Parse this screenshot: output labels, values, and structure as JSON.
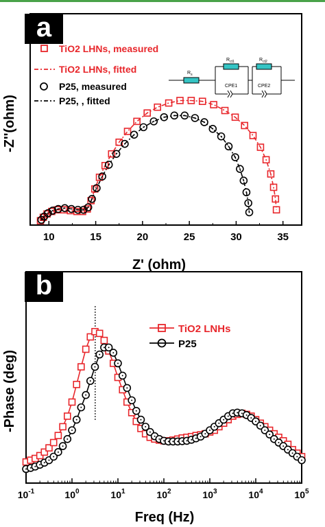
{
  "colors": {
    "tio2": "#e8262b",
    "p25": "#000000",
    "circuit_fill": "#35c4c4"
  },
  "chart_data": [
    {
      "panel": "a",
      "type": "scatter",
      "xlabel": "Z' (ohm)",
      "ylabel": "-Z''(ohm)",
      "xlim": [
        8,
        37
      ],
      "ylim": [
        0,
        25
      ],
      "xticks": [
        10,
        15,
        20,
        25,
        30,
        35
      ],
      "xtick_labels": [
        "10",
        "15",
        "20",
        "25",
        "30",
        "35"
      ],
      "legend_position": "top-left",
      "circuit_labels": [
        "R",
        "s",
        "R",
        "ct1",
        "R",
        "ct2",
        "CPE1",
        "CPE2"
      ],
      "series": [
        {
          "name": "TiO2 LHNs, measured",
          "marker": "square",
          "color": "#e8262b",
          "x": [
            9.1,
            9.4,
            9.8,
            10.3,
            10.9,
            11.6,
            12.3,
            13.0,
            13.6,
            14.1,
            14.5,
            14.9,
            15.4,
            16.0,
            16.7,
            17.5,
            18.4,
            19.4,
            20.5,
            21.6,
            22.8,
            24.0,
            25.2,
            26.4,
            27.6,
            28.8,
            29.9,
            30.9,
            31.8,
            32.6,
            33.2,
            33.7,
            34.0,
            34.2,
            34.3
          ],
          "y": [
            0.2,
            0.6,
            1.0,
            1.3,
            1.5,
            1.5,
            1.4,
            1.3,
            1.3,
            1.6,
            2.6,
            4.0,
            5.4,
            6.8,
            8.2,
            9.6,
            10.9,
            12.1,
            13.1,
            13.8,
            14.3,
            14.6,
            14.6,
            14.5,
            14.1,
            13.4,
            12.6,
            11.6,
            10.4,
            9.0,
            7.5,
            5.8,
            4.2,
            2.8,
            1.5
          ]
        },
        {
          "name": "TiO2 LHNs, fitted",
          "marker": "none",
          "line": "dashdot",
          "color": "#e8262b",
          "x": [
            9.1,
            9.4,
            9.8,
            10.3,
            10.9,
            11.6,
            12.3,
            13.0,
            13.6,
            14.1,
            14.5,
            14.9,
            15.4,
            16.0,
            16.7,
            17.5,
            18.4,
            19.4,
            20.5,
            21.6,
            22.8,
            24.0,
            25.2,
            26.4,
            27.6,
            28.8,
            29.9,
            30.9,
            31.8,
            32.6,
            33.2,
            33.7,
            34.0,
            34.2,
            34.3
          ],
          "y": [
            0.2,
            0.6,
            1.0,
            1.3,
            1.5,
            1.5,
            1.4,
            1.3,
            1.3,
            1.6,
            2.6,
            4.0,
            5.4,
            6.8,
            8.2,
            9.6,
            10.9,
            12.1,
            13.1,
            13.8,
            14.3,
            14.6,
            14.6,
            14.5,
            14.1,
            13.4,
            12.6,
            11.6,
            10.4,
            9.0,
            7.5,
            5.8,
            4.2,
            2.8,
            1.5
          ]
        },
        {
          "name": "P25, measured",
          "marker": "circle",
          "color": "#000000",
          "x": [
            9.2,
            9.5,
            9.9,
            10.4,
            11.0,
            11.7,
            12.4,
            13.1,
            13.7,
            14.2,
            14.6,
            15.1,
            15.7,
            16.4,
            17.2,
            18.1,
            19.1,
            20.1,
            21.2,
            22.3,
            23.4,
            24.5,
            25.6,
            26.6,
            27.5,
            28.4,
            29.2,
            29.9,
            30.4,
            30.8,
            31.1,
            31.3,
            31.4
          ],
          "y": [
            0.3,
            0.7,
            1.1,
            1.4,
            1.6,
            1.7,
            1.6,
            1.5,
            1.5,
            1.8,
            2.8,
            4.1,
            5.5,
            6.9,
            8.2,
            9.4,
            10.5,
            11.4,
            12.1,
            12.6,
            12.8,
            12.8,
            12.5,
            12.0,
            11.2,
            10.3,
            9.1,
            7.8,
            6.4,
            5.0,
            3.6,
            2.3,
            1.2
          ]
        },
        {
          "name": "P25, , fitted",
          "marker": "none",
          "line": "dashdot",
          "color": "#000000",
          "x": [
            9.2,
            9.5,
            9.9,
            10.4,
            11.0,
            11.7,
            12.4,
            13.1,
            13.7,
            14.2,
            14.6,
            15.1,
            15.7,
            16.4,
            17.2,
            18.1,
            19.1,
            20.1,
            21.2,
            22.3,
            23.4,
            24.5,
            25.6,
            26.6,
            27.5,
            28.4,
            29.2,
            29.9,
            30.4,
            30.8,
            31.1,
            31.3,
            31.4
          ],
          "y": [
            0.3,
            0.7,
            1.1,
            1.4,
            1.6,
            1.7,
            1.6,
            1.5,
            1.5,
            1.8,
            2.8,
            4.1,
            5.5,
            6.9,
            8.2,
            9.4,
            10.5,
            11.4,
            12.1,
            12.6,
            12.8,
            12.8,
            12.5,
            12.0,
            11.2,
            10.3,
            9.1,
            7.8,
            6.4,
            5.0,
            3.6,
            2.3,
            1.2
          ]
        }
      ]
    },
    {
      "panel": "b",
      "type": "line",
      "xlabel": "Freq (Hz)",
      "ylabel": "-Phase (deg)",
      "xscale": "log",
      "xlim": [
        0.1,
        100000
      ],
      "ylim": [
        0,
        60
      ],
      "xticks": [
        0.1,
        1,
        10,
        100,
        1000,
        10000,
        100000
      ],
      "xtick_labels": [
        "10",
        "10",
        "10",
        "10",
        "10",
        "10",
        "10"
      ],
      "xtick_exponents": [
        "-1",
        "0",
        "1",
        "2",
        "3",
        "4",
        "5"
      ],
      "legend_position": "top-right",
      "reference_line_x": 3.2,
      "series": [
        {
          "name": "TiO2 LNHs",
          "marker": "square",
          "color": "#e8262b",
          "x": [
            0.1,
            0.126,
            0.158,
            0.2,
            0.251,
            0.316,
            0.398,
            0.501,
            0.631,
            0.794,
            1.0,
            1.26,
            1.58,
            2.0,
            2.51,
            3.16,
            3.98,
            5.01,
            6.31,
            7.94,
            10,
            12.6,
            15.8,
            20,
            25.1,
            31.6,
            39.8,
            50.1,
            63.1,
            79.4,
            100,
            126,
            158,
            200,
            251,
            316,
            398,
            501,
            631,
            794,
            1000,
            1260,
            1580,
            2000,
            2510,
            3160,
            3980,
            5010,
            6310,
            7940,
            10000,
            12600,
            15800,
            20000,
            25100,
            31600,
            39800,
            50100,
            63100,
            79400,
            100000
          ],
          "y": [
            6,
            6.5,
            7,
            7.8,
            8.8,
            10,
            11.5,
            13.5,
            16,
            19,
            23,
            28,
            33,
            38,
            41.5,
            43,
            42.5,
            40.5,
            37.5,
            34,
            30,
            26.5,
            23,
            20,
            17.5,
            15.5,
            14,
            13,
            12.5,
            12.2,
            12,
            12,
            12.2,
            12.5,
            12.8,
            13,
            13.2,
            13.5,
            13.7,
            14,
            14.5,
            15,
            16,
            17,
            18,
            19,
            19.5,
            19.8,
            19.5,
            19,
            18,
            17,
            16,
            15,
            14,
            13,
            12,
            11,
            9.5,
            8.5,
            7.5
          ]
        },
        {
          "name": "P25",
          "marker": "circle",
          "color": "#000000",
          "x": [
            0.1,
            0.126,
            0.158,
            0.2,
            0.251,
            0.316,
            0.398,
            0.501,
            0.631,
            0.794,
            1.0,
            1.26,
            1.58,
            2.0,
            2.51,
            3.16,
            3.98,
            5.01,
            6.31,
            7.94,
            10,
            12.6,
            15.8,
            20,
            25.1,
            31.6,
            39.8,
            50.1,
            63.1,
            79.4,
            100,
            126,
            158,
            200,
            251,
            316,
            398,
            501,
            631,
            794,
            1000,
            1260,
            1580,
            2000,
            2510,
            3160,
            3980,
            5010,
            6310,
            7940,
            10000,
            12600,
            15800,
            20000,
            25100,
            31600,
            39800,
            50100,
            63100,
            79400,
            100000
          ],
          "y": [
            4,
            4.3,
            4.7,
            5.2,
            5.8,
            6.5,
            7.5,
            8.8,
            10.5,
            12.5,
            15,
            18,
            21.5,
            25,
            29,
            33,
            36.5,
            38.5,
            38.5,
            37,
            34,
            30.5,
            27,
            23.5,
            20.5,
            18,
            16,
            14.5,
            13.3,
            12.5,
            12,
            11.8,
            11.8,
            11.8,
            11.9,
            12,
            12.3,
            12.7,
            13.2,
            14,
            15,
            16,
            17,
            18,
            19,
            19.8,
            20,
            19.8,
            19.3,
            18.5,
            17.5,
            16.3,
            15,
            13.8,
            12.5,
            11.5,
            10.5,
            9.5,
            8.5,
            7.5,
            6.5
          ]
        }
      ]
    }
  ]
}
